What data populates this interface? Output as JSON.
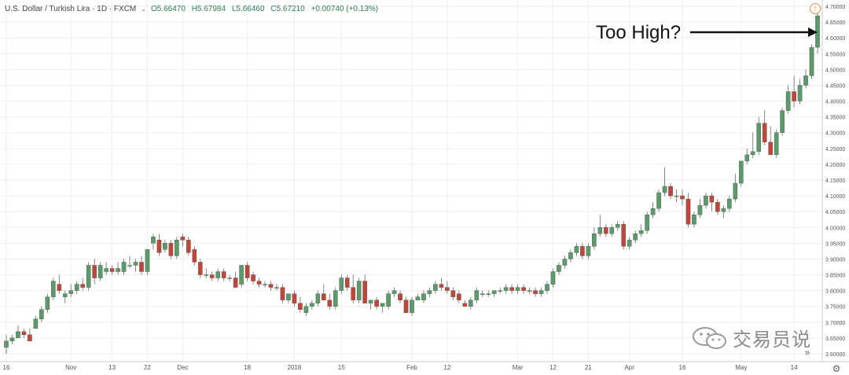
{
  "header": {
    "symbol": "U.S. Dollar / Turkish Lira · 1D · FXCM",
    "ohlc": [
      "O5.66470",
      "H5.67984",
      "L5.66460",
      "C5.67210",
      "+0.00740 (+0.13%)"
    ]
  },
  "annotation": "Too High?",
  "watermark": {
    "text": "交易员说",
    "icon": "wechat-icon"
  },
  "colors": {
    "up": "#5b9a6b",
    "down": "#c0463a",
    "grid": "#eeeeee",
    "alert": "#e8943a"
  },
  "icons": {
    "alert": "alert-circle-icon",
    "settings": "gear-icon",
    "scroll": "double-chevron-right-icon"
  },
  "chart_data": {
    "type": "candlestick",
    "title": "U.S. Dollar / Turkish Lira · 1D · FXCM",
    "ylim": [
      3.575,
      4.72
    ],
    "y_ticks": [
      3.6,
      3.65,
      3.7,
      3.75,
      3.8,
      3.85,
      3.9,
      3.95,
      4.0,
      4.05,
      4.1,
      4.15,
      4.2,
      4.25,
      4.3,
      4.35,
      4.4,
      4.45,
      4.5,
      4.55,
      4.6,
      4.65,
      4.7
    ],
    "y_tick_labels": [
      "3.60000",
      "3.65000",
      "3.70000",
      "3.75000",
      "3.80000",
      "3.85000",
      "3.90000",
      "3.95000",
      "4.00000",
      "4.05000",
      "4.10000",
      "4.15000",
      "4.20000",
      "4.25000",
      "4.30000",
      "4.35000",
      "4.40000",
      "4.45000",
      "4.50000",
      "4.55000",
      "4.60000",
      "4.65000",
      "4.70000"
    ],
    "x_labels": [
      {
        "i": 0,
        "label": "16"
      },
      {
        "i": 11,
        "label": "Nov"
      },
      {
        "i": 18,
        "label": "13"
      },
      {
        "i": 24,
        "label": "22"
      },
      {
        "i": 30,
        "label": "Dec"
      },
      {
        "i": 41,
        "label": "18"
      },
      {
        "i": 49,
        "label": "2018"
      },
      {
        "i": 57,
        "label": "15"
      },
      {
        "i": 69,
        "label": "Feb"
      },
      {
        "i": 75,
        "label": "12"
      },
      {
        "i": 87,
        "label": "Mar"
      },
      {
        "i": 93,
        "label": "12"
      },
      {
        "i": 99,
        "label": "21"
      },
      {
        "i": 106,
        "label": "Apr"
      },
      {
        "i": 115,
        "label": "16"
      },
      {
        "i": 125,
        "label": "May"
      },
      {
        "i": 134,
        "label": "14"
      }
    ],
    "candles": [
      [
        3.62,
        3.66,
        3.6,
        3.64
      ],
      [
        3.64,
        3.66,
        3.63,
        3.65
      ],
      [
        3.65,
        3.69,
        3.65,
        3.67
      ],
      [
        3.67,
        3.68,
        3.65,
        3.66
      ],
      [
        3.66,
        3.68,
        3.64,
        3.64
      ],
      [
        3.68,
        3.72,
        3.68,
        3.71
      ],
      [
        3.71,
        3.75,
        3.7,
        3.74
      ],
      [
        3.74,
        3.79,
        3.73,
        3.78
      ],
      [
        3.78,
        3.84,
        3.77,
        3.83
      ],
      [
        3.82,
        3.85,
        3.79,
        3.8
      ],
      [
        3.78,
        3.8,
        3.76,
        3.79
      ],
      [
        3.79,
        3.82,
        3.78,
        3.8
      ],
      [
        3.8,
        3.83,
        3.79,
        3.82
      ],
      [
        3.82,
        3.84,
        3.8,
        3.81
      ],
      [
        3.81,
        3.89,
        3.8,
        3.88
      ],
      [
        3.88,
        3.9,
        3.82,
        3.84
      ],
      [
        3.84,
        3.89,
        3.83,
        3.88
      ],
      [
        3.86,
        3.89,
        3.85,
        3.87
      ],
      [
        3.87,
        3.88,
        3.85,
        3.86
      ],
      [
        3.86,
        3.89,
        3.85,
        3.87
      ],
      [
        3.86,
        3.9,
        3.85,
        3.89
      ],
      [
        3.88,
        3.91,
        3.87,
        3.88
      ],
      [
        3.88,
        3.9,
        3.86,
        3.89
      ],
      [
        3.89,
        3.91,
        3.85,
        3.86
      ],
      [
        3.86,
        3.93,
        3.85,
        3.93
      ],
      [
        3.95,
        3.98,
        3.93,
        3.97
      ],
      [
        3.96,
        3.98,
        3.91,
        3.92
      ],
      [
        3.93,
        3.96,
        3.92,
        3.95
      ],
      [
        3.95,
        3.96,
        3.9,
        3.91
      ],
      [
        3.91,
        3.97,
        3.9,
        3.96
      ],
      [
        3.97,
        3.98,
        3.94,
        3.96
      ],
      [
        3.96,
        3.97,
        3.91,
        3.92
      ],
      [
        3.93,
        3.94,
        3.88,
        3.89
      ],
      [
        3.89,
        3.9,
        3.84,
        3.85
      ],
      [
        3.85,
        3.87,
        3.84,
        3.85
      ],
      [
        3.85,
        3.86,
        3.83,
        3.84
      ],
      [
        3.84,
        3.87,
        3.83,
        3.86
      ],
      [
        3.86,
        3.87,
        3.83,
        3.84
      ],
      [
        3.84,
        3.85,
        3.83,
        3.84
      ],
      [
        3.84,
        3.86,
        3.81,
        3.81
      ],
      [
        3.82,
        3.88,
        3.81,
        3.88
      ],
      [
        3.88,
        3.89,
        3.83,
        3.84
      ],
      [
        3.85,
        3.86,
        3.82,
        3.83
      ],
      [
        3.83,
        3.84,
        3.81,
        3.82
      ],
      [
        3.82,
        3.83,
        3.81,
        3.82
      ],
      [
        3.82,
        3.83,
        3.8,
        3.81
      ],
      [
        3.81,
        3.82,
        3.8,
        3.81
      ],
      [
        3.81,
        3.82,
        3.76,
        3.77
      ],
      [
        3.77,
        3.79,
        3.76,
        3.79
      ],
      [
        3.79,
        3.8,
        3.75,
        3.76
      ],
      [
        3.76,
        3.78,
        3.73,
        3.74
      ],
      [
        3.73,
        3.76,
        3.72,
        3.75
      ],
      [
        3.75,
        3.77,
        3.74,
        3.76
      ],
      [
        3.76,
        3.8,
        3.75,
        3.79
      ],
      [
        3.79,
        3.82,
        3.78,
        3.77
      ],
      [
        3.77,
        3.79,
        3.74,
        3.75
      ],
      [
        3.75,
        3.81,
        3.74,
        3.8
      ],
      [
        3.8,
        3.85,
        3.79,
        3.84
      ],
      [
        3.84,
        3.85,
        3.8,
        3.81
      ],
      [
        3.81,
        3.85,
        3.76,
        3.77
      ],
      [
        3.77,
        3.84,
        3.76,
        3.83
      ],
      [
        3.83,
        3.85,
        3.76,
        3.76
      ],
      [
        3.76,
        3.77,
        3.74,
        3.77
      ],
      [
        3.77,
        3.78,
        3.74,
        3.75
      ],
      [
        3.75,
        3.76,
        3.73,
        3.76
      ],
      [
        3.75,
        3.8,
        3.74,
        3.79
      ],
      [
        3.79,
        3.81,
        3.78,
        3.8
      ],
      [
        3.79,
        3.8,
        3.76,
        3.77
      ],
      [
        3.77,
        3.78,
        3.73,
        3.73
      ],
      [
        3.73,
        3.78,
        3.72,
        3.77
      ],
      [
        3.77,
        3.79,
        3.77,
        3.78
      ],
      [
        3.77,
        3.8,
        3.76,
        3.79
      ],
      [
        3.79,
        3.81,
        3.78,
        3.8
      ],
      [
        3.8,
        3.83,
        3.79,
        3.82
      ],
      [
        3.82,
        3.84,
        3.8,
        3.81
      ],
      [
        3.81,
        3.83,
        3.79,
        3.8
      ],
      [
        3.8,
        3.81,
        3.77,
        3.78
      ],
      [
        3.79,
        3.8,
        3.76,
        3.77
      ],
      [
        3.76,
        3.77,
        3.75,
        3.75
      ],
      [
        3.75,
        3.78,
        3.74,
        3.77
      ],
      [
        3.77,
        3.81,
        3.76,
        3.8
      ],
      [
        3.79,
        3.8,
        3.78,
        3.79
      ],
      [
        3.79,
        3.8,
        3.78,
        3.79
      ],
      [
        3.79,
        3.8,
        3.78,
        3.8
      ],
      [
        3.8,
        3.81,
        3.79,
        3.8
      ],
      [
        3.8,
        3.82,
        3.79,
        3.81
      ],
      [
        3.81,
        3.82,
        3.79,
        3.8
      ],
      [
        3.8,
        3.82,
        3.79,
        3.81
      ],
      [
        3.81,
        3.82,
        3.79,
        3.8
      ],
      [
        3.8,
        3.81,
        3.79,
        3.8
      ],
      [
        3.8,
        3.81,
        3.78,
        3.79
      ],
      [
        3.79,
        3.81,
        3.78,
        3.8
      ],
      [
        3.8,
        3.83,
        3.79,
        3.82
      ],
      [
        3.82,
        3.87,
        3.81,
        3.86
      ],
      [
        3.86,
        3.89,
        3.85,
        3.88
      ],
      [
        3.88,
        3.91,
        3.87,
        3.9
      ],
      [
        3.9,
        3.93,
        3.89,
        3.92
      ],
      [
        3.92,
        3.95,
        3.91,
        3.94
      ],
      [
        3.94,
        3.95,
        3.9,
        3.91
      ],
      [
        3.91,
        3.95,
        3.9,
        3.94
      ],
      [
        3.94,
        4.0,
        3.93,
        3.98
      ],
      [
        3.98,
        4.04,
        3.97,
        4.0
      ],
      [
        4.0,
        4.01,
        3.97,
        3.98
      ],
      [
        3.98,
        4.01,
        3.97,
        4.0
      ],
      [
        4.0,
        4.02,
        3.99,
        4.01
      ],
      [
        4.01,
        4.02,
        3.93,
        3.94
      ],
      [
        3.94,
        3.97,
        3.93,
        3.96
      ],
      [
        3.96,
        3.99,
        3.95,
        3.98
      ],
      [
        3.98,
        4.01,
        3.97,
        3.99
      ],
      [
        3.99,
        4.05,
        3.98,
        4.04
      ],
      [
        4.04,
        4.08,
        4.03,
        4.06
      ],
      [
        4.06,
        4.12,
        4.05,
        4.11
      ],
      [
        4.11,
        4.19,
        4.1,
        4.13
      ],
      [
        4.13,
        4.14,
        4.09,
        4.1
      ],
      [
        4.1,
        4.12,
        4.08,
        4.1
      ],
      [
        4.1,
        4.12,
        4.07,
        4.09
      ],
      [
        4.09,
        4.11,
        4.0,
        4.01
      ],
      [
        4.01,
        4.05,
        4.0,
        4.04
      ],
      [
        4.04,
        4.09,
        4.03,
        4.07
      ],
      [
        4.07,
        4.11,
        4.06,
        4.1
      ],
      [
        4.1,
        4.11,
        4.05,
        4.08
      ],
      [
        4.08,
        4.09,
        4.04,
        4.05
      ],
      [
        4.05,
        4.07,
        4.03,
        4.06
      ],
      [
        4.06,
        4.1,
        4.05,
        4.09
      ],
      [
        4.09,
        4.17,
        4.08,
        4.14
      ],
      [
        4.14,
        4.2,
        4.13,
        4.21
      ],
      [
        4.21,
        4.25,
        4.2,
        4.23
      ],
      [
        4.23,
        4.3,
        4.22,
        4.24
      ],
      [
        4.24,
        4.35,
        4.23,
        4.33
      ],
      [
        4.33,
        4.37,
        4.26,
        4.27
      ],
      [
        4.27,
        4.32,
        4.23,
        4.23
      ],
      [
        4.23,
        4.31,
        4.22,
        4.3
      ],
      [
        4.3,
        4.38,
        4.29,
        4.37
      ],
      [
        4.37,
        4.45,
        4.36,
        4.43
      ],
      [
        4.43,
        4.48,
        4.38,
        4.4
      ],
      [
        4.4,
        4.47,
        4.39,
        4.45
      ],
      [
        4.45,
        4.5,
        4.44,
        4.48
      ],
      [
        4.48,
        4.58,
        4.47,
        4.57
      ],
      [
        4.57,
        4.68,
        4.55,
        4.67
      ]
    ]
  }
}
